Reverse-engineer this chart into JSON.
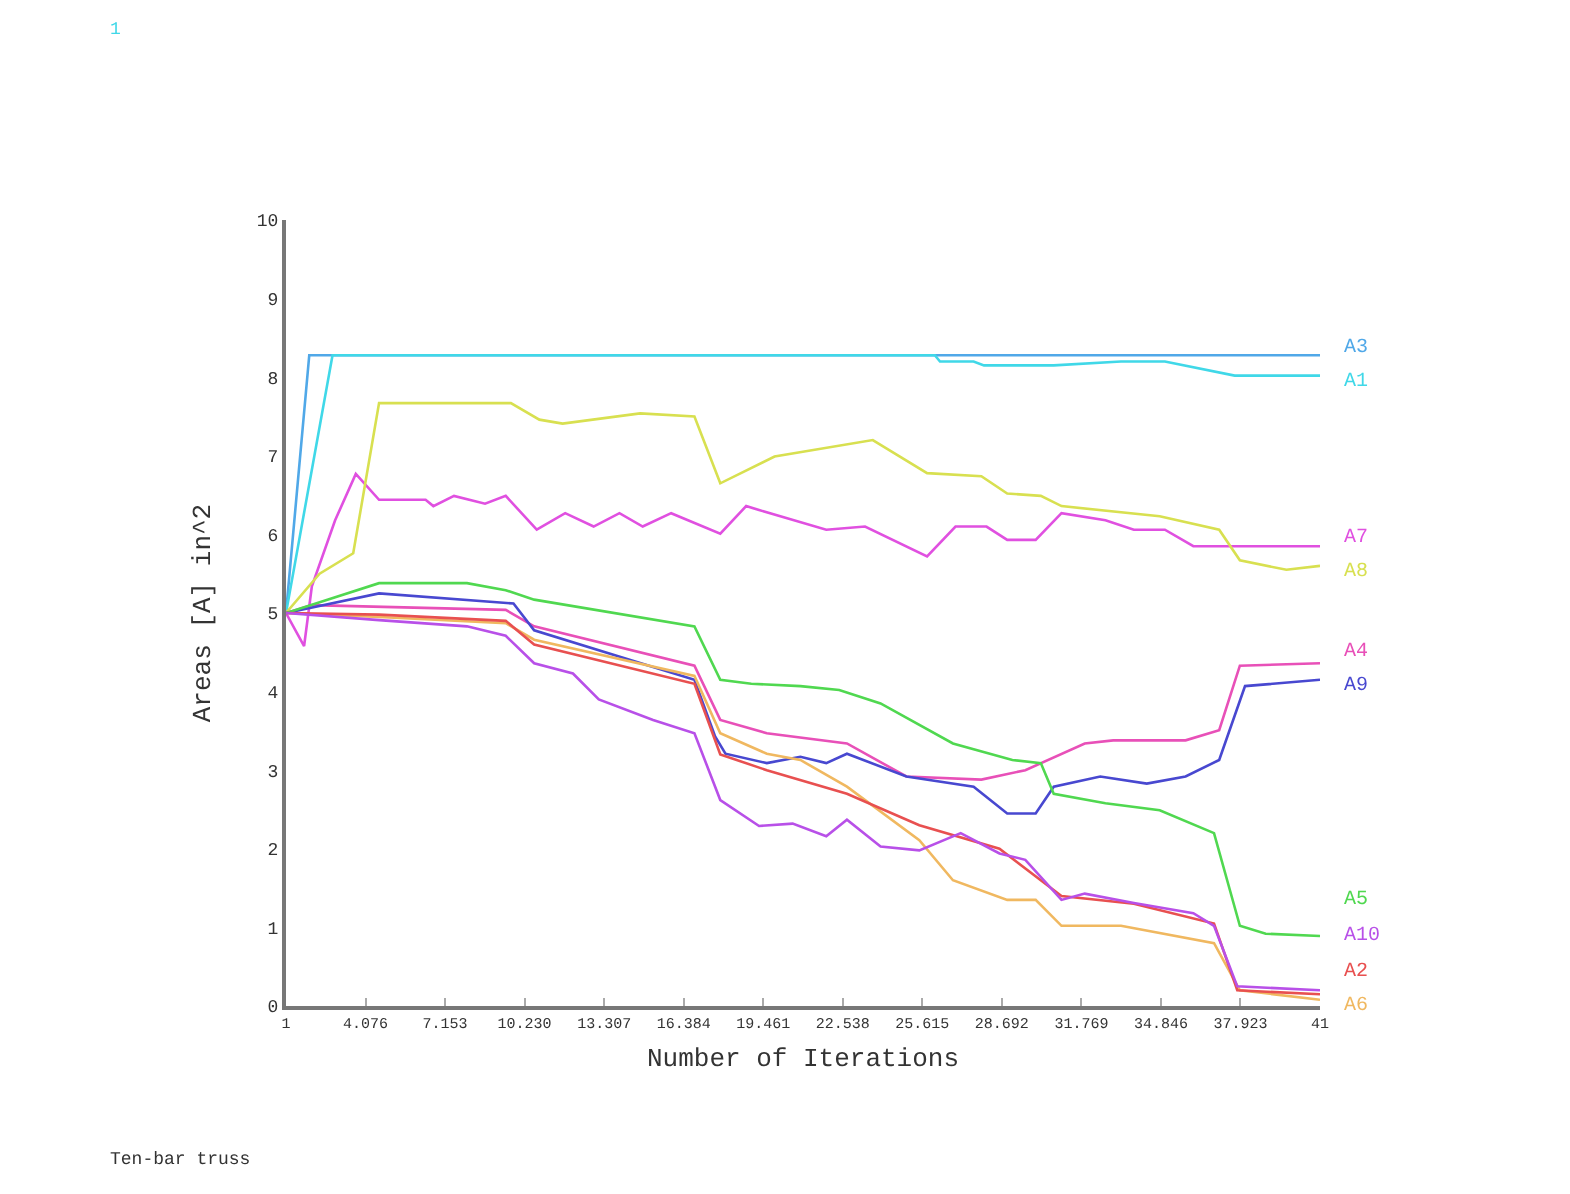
{
  "chart_data": {
    "type": "line",
    "xlabel": "Number of Iterations",
    "ylabel": "Areas [A] in^2",
    "annotations": [
      "1",
      "Ten-bar truss"
    ],
    "xlim": [
      1,
      41
    ],
    "xticks": [
      1,
      {
        "value": 4.076,
        "label": "4.076"
      },
      {
        "value": 7.153,
        "label": "7.153"
      },
      {
        "value": 10.23,
        "label": "10.230"
      },
      {
        "value": 13.307,
        "label": "13.307"
      },
      {
        "value": 16.384,
        "label": "16.384"
      },
      {
        "value": 19.461,
        "label": "19.461"
      },
      {
        "value": 22.538,
        "label": "22.538"
      },
      {
        "value": 25.615,
        "label": "25.615"
      },
      {
        "value": 28.692,
        "label": "28.692"
      },
      {
        "value": 31.769,
        "label": "31.769"
      },
      {
        "value": 34.846,
        "label": "34.846"
      },
      {
        "value": 37.923,
        "label": "37.923"
      },
      41
    ],
    "ylim": [
      0,
      10
    ],
    "yticks": [
      0,
      1,
      2,
      3,
      4,
      5,
      6,
      7,
      8,
      9,
      10
    ],
    "grid": false,
    "legend": false,
    "marker": "none",
    "line_style": "solid",
    "series": [
      {
        "name": "A3",
        "color": "#50a8e8",
        "x": [
          1,
          1.9,
          41
        ],
        "values": [
          5.0,
          8.28,
          8.28
        ]
      },
      {
        "name": "A1",
        "color": "#40d8e8",
        "x": [
          1,
          2.8,
          26.1,
          26.3,
          27.6,
          28.0,
          30.7,
          33.3,
          35.0,
          37.7,
          41
        ],
        "values": [
          5.0,
          8.28,
          8.28,
          8.2,
          8.2,
          8.15,
          8.15,
          8.2,
          8.2,
          8.02,
          8.02
        ]
      },
      {
        "name": "A7",
        "color": "#e050e0",
        "x": [
          1,
          1.7,
          2.0,
          2.9,
          3.7,
          4.6,
          6.4,
          6.7,
          7.5,
          8.7,
          9.5,
          10.7,
          11.8,
          12.9,
          13.9,
          14.8,
          15.9,
          17.8,
          18.8,
          19.3,
          21.9,
          23.4,
          25.8,
          26.9,
          28.1,
          28.9,
          30.0,
          31.0,
          32.7,
          33.8,
          35.0,
          36.1,
          41
        ],
        "values": [
          5.0,
          4.58,
          5.34,
          6.18,
          6.77,
          6.44,
          6.44,
          6.36,
          6.49,
          6.39,
          6.49,
          6.06,
          6.27,
          6.1,
          6.27,
          6.1,
          6.27,
          6.01,
          6.36,
          6.31,
          6.06,
          6.1,
          5.72,
          6.1,
          6.1,
          5.93,
          5.93,
          6.27,
          6.18,
          6.06,
          6.06,
          5.85,
          5.85
        ]
      },
      {
        "name": "A8",
        "color": "#d8e050",
        "x": [
          1,
          2.3,
          3.6,
          4.6,
          9.7,
          10.8,
          11.7,
          14.7,
          16.8,
          17.8,
          19.9,
          23.7,
          25.8,
          27.9,
          28.9,
          30.2,
          31.0,
          34.8,
          37.1,
          37.9,
          39.7,
          41
        ],
        "values": [
          5.0,
          5.5,
          5.76,
          7.67,
          7.67,
          7.46,
          7.41,
          7.54,
          7.5,
          6.65,
          6.99,
          7.2,
          6.78,
          6.74,
          6.52,
          6.49,
          6.36,
          6.23,
          6.06,
          5.67,
          5.55,
          5.6
        ]
      },
      {
        "name": "A4",
        "color": "#e850b8",
        "x": [
          1,
          2.0,
          9.5,
          10.6,
          16.8,
          17.8,
          19.6,
          22.7,
          25.0,
          27.9,
          29.6,
          31.9,
          33.0,
          35.8,
          37.1,
          37.9,
          41
        ],
        "values": [
          5.0,
          5.1,
          5.04,
          4.83,
          4.33,
          3.64,
          3.47,
          3.34,
          2.92,
          2.88,
          3.0,
          3.34,
          3.38,
          3.38,
          3.51,
          4.33,
          4.36
        ]
      },
      {
        "name": "A9",
        "color": "#4848d0",
        "x": [
          1,
          4.6,
          9.8,
          10.6,
          16.8,
          17.6,
          18.0,
          19.6,
          20.9,
          21.9,
          22.7,
          25.0,
          27.6,
          28.9,
          30.0,
          30.7,
          32.5,
          34.3,
          35.8,
          37.1,
          38.1,
          41
        ],
        "values": [
          5.0,
          5.25,
          5.12,
          4.78,
          4.15,
          3.43,
          3.21,
          3.09,
          3.17,
          3.09,
          3.21,
          2.92,
          2.79,
          2.45,
          2.45,
          2.79,
          2.92,
          2.83,
          2.92,
          3.13,
          4.07,
          4.15
        ]
      },
      {
        "name": "A6",
        "color": "#f0b860",
        "x": [
          1,
          4.6,
          9.5,
          10.6,
          16.8,
          17.8,
          19.6,
          20.9,
          22.7,
          25.5,
          26.8,
          28.9,
          30.0,
          31.0,
          33.3,
          36.9,
          37.9,
          41
        ],
        "values": [
          5.0,
          4.95,
          4.87,
          4.66,
          4.2,
          3.47,
          3.21,
          3.13,
          2.79,
          2.11,
          1.6,
          1.35,
          1.35,
          1.02,
          1.02,
          0.8,
          0.2,
          0.08
        ]
      },
      {
        "name": "A5",
        "color": "#50d850",
        "x": [
          1,
          4.6,
          8.0,
          9.5,
          10.6,
          16.8,
          17.8,
          19.0,
          20.9,
          22.4,
          24.0,
          26.8,
          29.1,
          30.2,
          30.7,
          32.7,
          34.8,
          36.9,
          37.9,
          38.9,
          41
        ],
        "values": [
          5.0,
          5.38,
          5.38,
          5.29,
          5.17,
          4.83,
          4.15,
          4.1,
          4.07,
          4.02,
          3.85,
          3.34,
          3.13,
          3.09,
          2.7,
          2.58,
          2.49,
          2.2,
          1.02,
          0.92,
          0.89
        ]
      },
      {
        "name": "A2",
        "color": "#e85050",
        "x": [
          1,
          4.6,
          9.5,
          10.6,
          16.8,
          17.8,
          19.6,
          22.7,
          25.5,
          28.6,
          31.0,
          33.8,
          36.9,
          37.8,
          41
        ],
        "values": [
          5.0,
          4.98,
          4.9,
          4.6,
          4.1,
          3.2,
          3.0,
          2.7,
          2.3,
          2.0,
          1.4,
          1.3,
          1.05,
          0.2,
          0.15
        ]
      },
      {
        "name": "A10",
        "color": "#b850e8",
        "x": [
          1,
          4.6,
          8.0,
          9.5,
          10.6,
          12.1,
          13.1,
          15.2,
          16.8,
          17.8,
          19.3,
          20.6,
          21.9,
          22.7,
          24.0,
          25.5,
          27.1,
          28.6,
          29.6,
          31.0,
          31.9,
          33.8,
          36.1,
          36.9,
          37.8,
          41
        ],
        "values": [
          5.0,
          4.91,
          4.83,
          4.71,
          4.36,
          4.23,
          3.9,
          3.64,
          3.47,
          2.62,
          2.29,
          2.32,
          2.16,
          2.37,
          2.03,
          1.98,
          2.2,
          1.94,
          1.86,
          1.35,
          1.43,
          1.31,
          1.18,
          1.02,
          0.25,
          0.2
        ]
      }
    ]
  }
}
